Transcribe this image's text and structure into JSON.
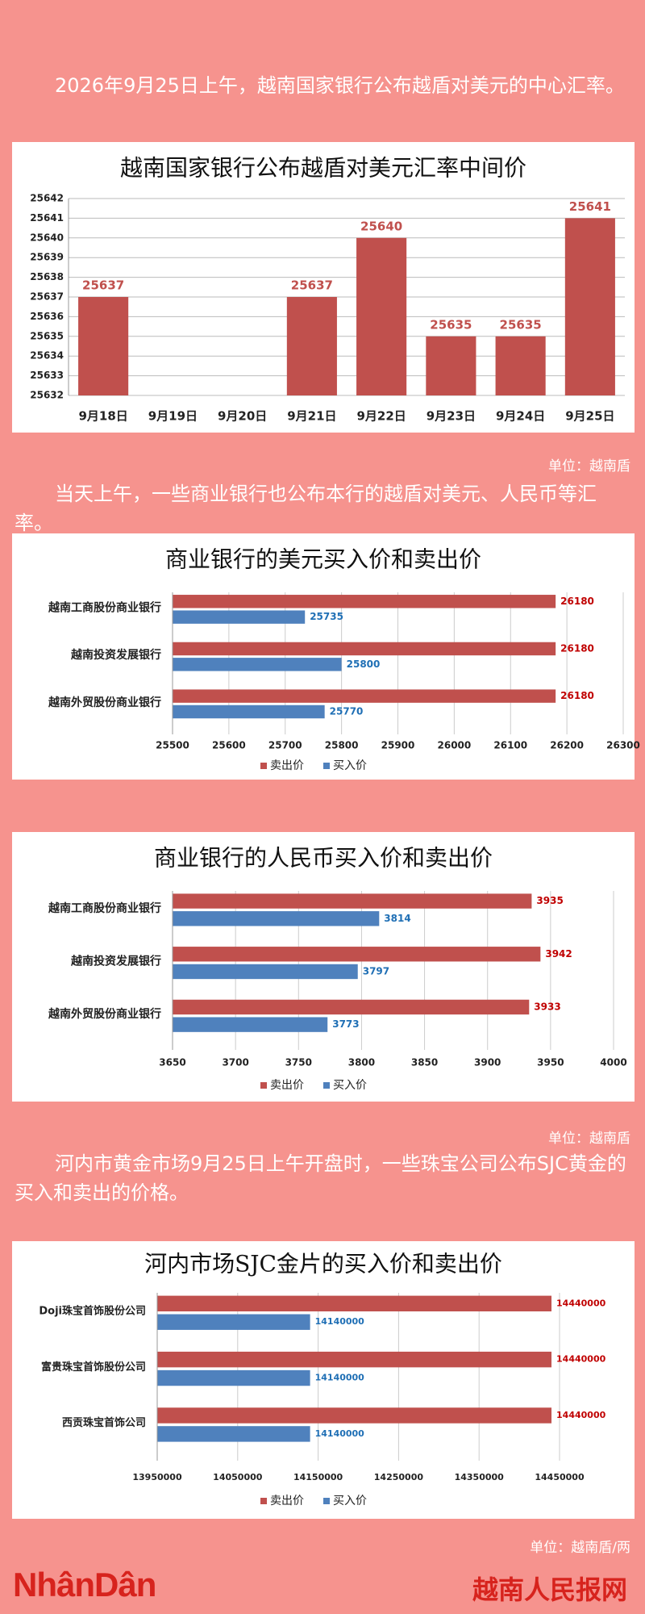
{
  "texts": {
    "intro1": "2026年9月25日上午，越南国家银行公布越盾对美元的中心汇率。",
    "unit1": "单位：越南盾",
    "intro2": "当天上午，一些商业银行也公布本行的越盾对美元、人民币等汇率。",
    "unit2": "单位：越南盾",
    "intro3": "河内市黄金市场9月25日上午开盘时，一些珠宝公司公布SJC黄金的买入和卖出的价格。",
    "unit3": "单位：越南盾/两",
    "logo": "NhânDân",
    "footer": "越南人民报网"
  },
  "chart_data": [
    {
      "type": "bar",
      "orientation": "vertical",
      "title": "越南国家银行公布越盾对美元汇率中间价",
      "categories": [
        "9月18日",
        "9月19日",
        "9月20日",
        "9月21日",
        "9月22日",
        "9月23日",
        "9月24日",
        "9月25日"
      ],
      "values": [
        25637,
        null,
        null,
        25637,
        25640,
        25635,
        25635,
        25641
      ],
      "color": "#c0504d",
      "ylim": [
        25632,
        25642
      ],
      "yticks": [
        25632,
        25633,
        25634,
        25635,
        25636,
        25637,
        25638,
        25639,
        25640,
        25641,
        25642
      ],
      "grid": true
    },
    {
      "type": "bar",
      "orientation": "horizontal",
      "title": "商业银行的美元买入价和卖出价",
      "categories": [
        "越南工商股份商业银行",
        "越南投资发展银行",
        "越南外贸股份商业银行"
      ],
      "series": [
        {
          "name": "卖出价",
          "color": "#c0504d",
          "values": [
            26180,
            26180,
            26180
          ]
        },
        {
          "name": "买入价",
          "color": "#4f81bd",
          "values": [
            25735,
            25800,
            25770
          ]
        }
      ],
      "xlim": [
        25500,
        26300
      ],
      "xticks": [
        25500,
        25600,
        25700,
        25800,
        25900,
        26000,
        26100,
        26200,
        26300
      ],
      "grid": true,
      "legend": "bottom"
    },
    {
      "type": "bar",
      "orientation": "horizontal",
      "title": "商业银行的人民币买入价和卖出价",
      "categories": [
        "越南工商股份商业银行",
        "越南投资发展银行",
        "越南外贸股份商业银行"
      ],
      "series": [
        {
          "name": "卖出价",
          "color": "#c0504d",
          "values": [
            3935,
            3942,
            3933
          ]
        },
        {
          "name": "买入价",
          "color": "#4f81bd",
          "values": [
            3814,
            3797,
            3773
          ]
        }
      ],
      "xlim": [
        3650,
        4000
      ],
      "xticks": [
        3650,
        3700,
        3750,
        3800,
        3850,
        3900,
        3950,
        4000
      ],
      "grid": true,
      "legend": "bottom"
    },
    {
      "type": "bar",
      "orientation": "horizontal",
      "title": "河内市场SJC金片的买入价和卖出价",
      "categories": [
        "Doji珠宝首饰股份公司",
        "富贵珠宝首饰股份公司",
        "西贡珠宝首饰公司"
      ],
      "series": [
        {
          "name": "卖出价",
          "color": "#c0504d",
          "values": [
            14440000,
            14440000,
            14440000
          ]
        },
        {
          "name": "买入价",
          "color": "#4f81bd",
          "values": [
            14140000,
            14140000,
            14140000
          ]
        }
      ],
      "xlim": [
        13950000,
        14450000
      ],
      "xticks": [
        13950000,
        14050000,
        14150000,
        14250000,
        14350000,
        14450000
      ],
      "grid": true,
      "legend": "bottom"
    }
  ]
}
